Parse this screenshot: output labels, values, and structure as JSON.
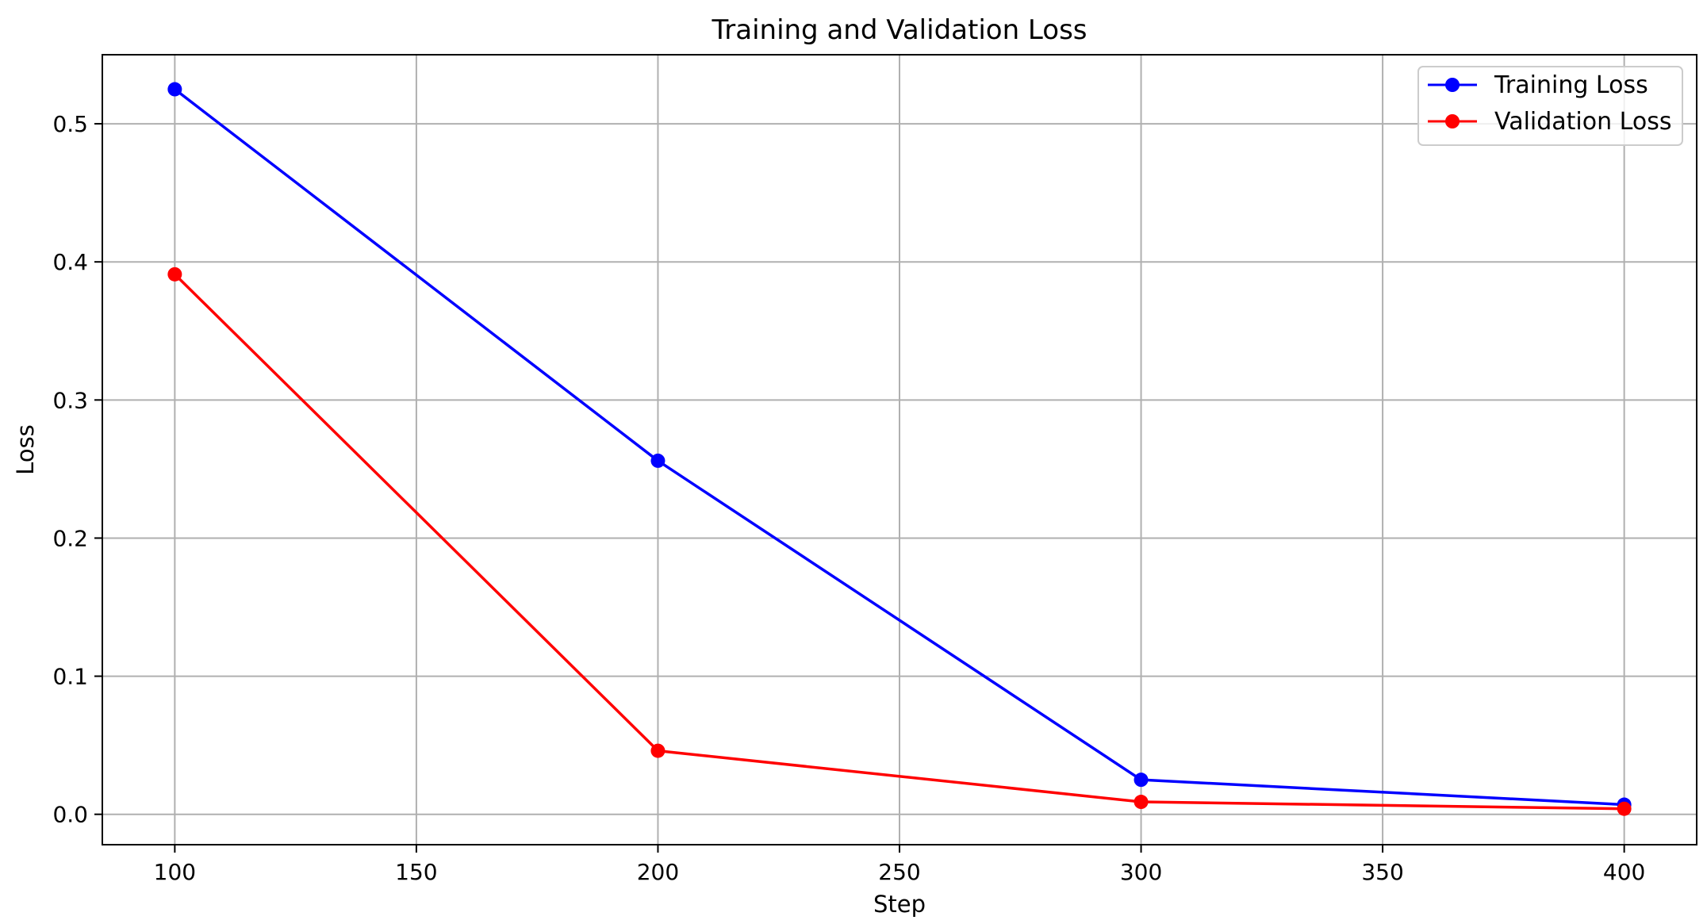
{
  "chart_data": {
    "type": "line",
    "title": "Training and Validation Loss",
    "xlabel": "Step",
    "ylabel": "Loss",
    "xlim": [
      85,
      415
    ],
    "ylim": [
      -0.022,
      0.55
    ],
    "xticks": [
      100,
      150,
      200,
      250,
      300,
      350,
      400
    ],
    "xtick_labels": [
      "100",
      "150",
      "200",
      "250",
      "300",
      "350",
      "400"
    ],
    "yticks": [
      0.0,
      0.1,
      0.2,
      0.3,
      0.4,
      0.5
    ],
    "ytick_labels": [
      "0.0",
      "0.1",
      "0.2",
      "0.3",
      "0.4",
      "0.5"
    ],
    "grid": true,
    "legend_position": "top-right",
    "x": [
      100,
      200,
      300,
      400
    ],
    "series": [
      {
        "name": "Training Loss",
        "color": "#0000ff",
        "marker": "circle",
        "values": [
          0.525,
          0.256,
          0.025,
          0.007
        ]
      },
      {
        "name": "Validation Loss",
        "color": "#ff0000",
        "marker": "circle",
        "values": [
          0.391,
          0.046,
          0.009,
          0.004
        ]
      }
    ]
  }
}
